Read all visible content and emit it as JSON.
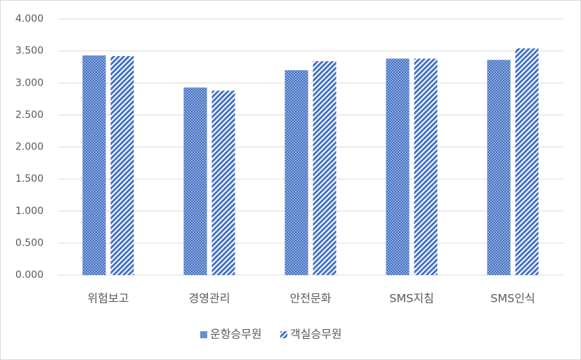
{
  "chart_data": {
    "type": "bar",
    "categories": [
      "위험보고",
      "경영관리",
      "안전문화",
      "SMS지침",
      "SMS인식"
    ],
    "series": [
      {
        "name": "운항승무원",
        "color": "#4472c4",
        "pattern": "dots",
        "values": [
          3.43,
          2.93,
          3.2,
          3.38,
          3.36
        ]
      },
      {
        "name": "객실승무원",
        "color": "#4472c4",
        "pattern": "stripes",
        "values": [
          3.42,
          2.88,
          3.34,
          3.38,
          3.54
        ]
      }
    ],
    "ylim": [
      0,
      4
    ],
    "yticks": [
      {
        "value": 0,
        "label": "0.000"
      },
      {
        "value": 0.5,
        "label": "0.500"
      },
      {
        "value": 1,
        "label": "1.000"
      },
      {
        "value": 1.5,
        "label": "1.500"
      },
      {
        "value": 2,
        "label": "2.000"
      },
      {
        "value": 2.5,
        "label": "2.500"
      },
      {
        "value": 3,
        "label": "3.000"
      },
      {
        "value": 3.5,
        "label": "3.500"
      },
      {
        "value": 4,
        "label": "4.000"
      }
    ],
    "grid": true,
    "legend": "bottom"
  }
}
